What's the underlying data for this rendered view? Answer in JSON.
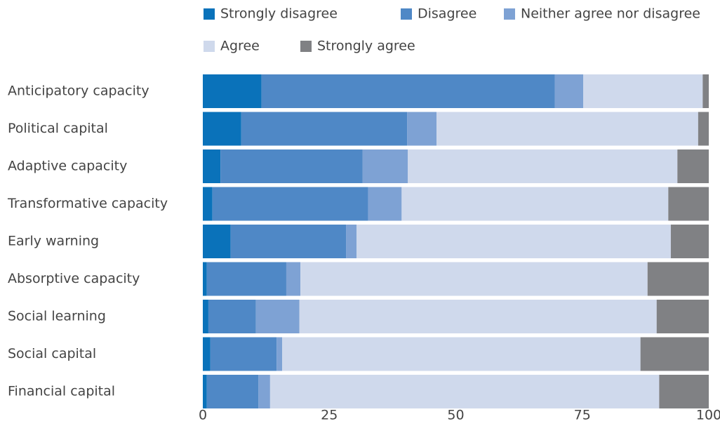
{
  "chart_data": {
    "type": "stacked_barh",
    "categories": [
      "Anticipatory capacity",
      "Political capital",
      "Adaptive capacity",
      "Transformative capacity",
      "Early warning",
      "Absorptive capacity",
      "Social learning",
      "Social capital",
      "Financial capital"
    ],
    "series": [
      {
        "name": "Strongly disagree",
        "color": "#0a72ba",
        "values": [
          11.6,
          7.6,
          3.5,
          1.9,
          5.5,
          0.8,
          1.1,
          1.5,
          0.8
        ]
      },
      {
        "name": "Disagree",
        "color": "#4f88c6",
        "values": [
          58.0,
          32.8,
          28.1,
          30.8,
          22.8,
          15.7,
          9.4,
          13.1,
          10.2
        ]
      },
      {
        "name": "Neither agree nor disagree",
        "color": "#7ea2d4",
        "values": [
          5.6,
          5.8,
          8.9,
          6.6,
          2.1,
          2.8,
          8.6,
          1.1,
          2.3
        ]
      },
      {
        "name": "Agree",
        "color": "#cfd9ec",
        "values": [
          23.6,
          51.7,
          53.3,
          52.7,
          62.1,
          68.6,
          70.6,
          70.8,
          76.9
        ]
      },
      {
        "name": "Strongly agree",
        "color": "#808184",
        "values": [
          1.2,
          2.1,
          6.2,
          8.0,
          7.5,
          12.1,
          10.3,
          13.5,
          9.8
        ]
      }
    ],
    "xlim": [
      0,
      100
    ],
    "xticks": [
      0,
      25,
      50,
      75,
      100
    ]
  }
}
